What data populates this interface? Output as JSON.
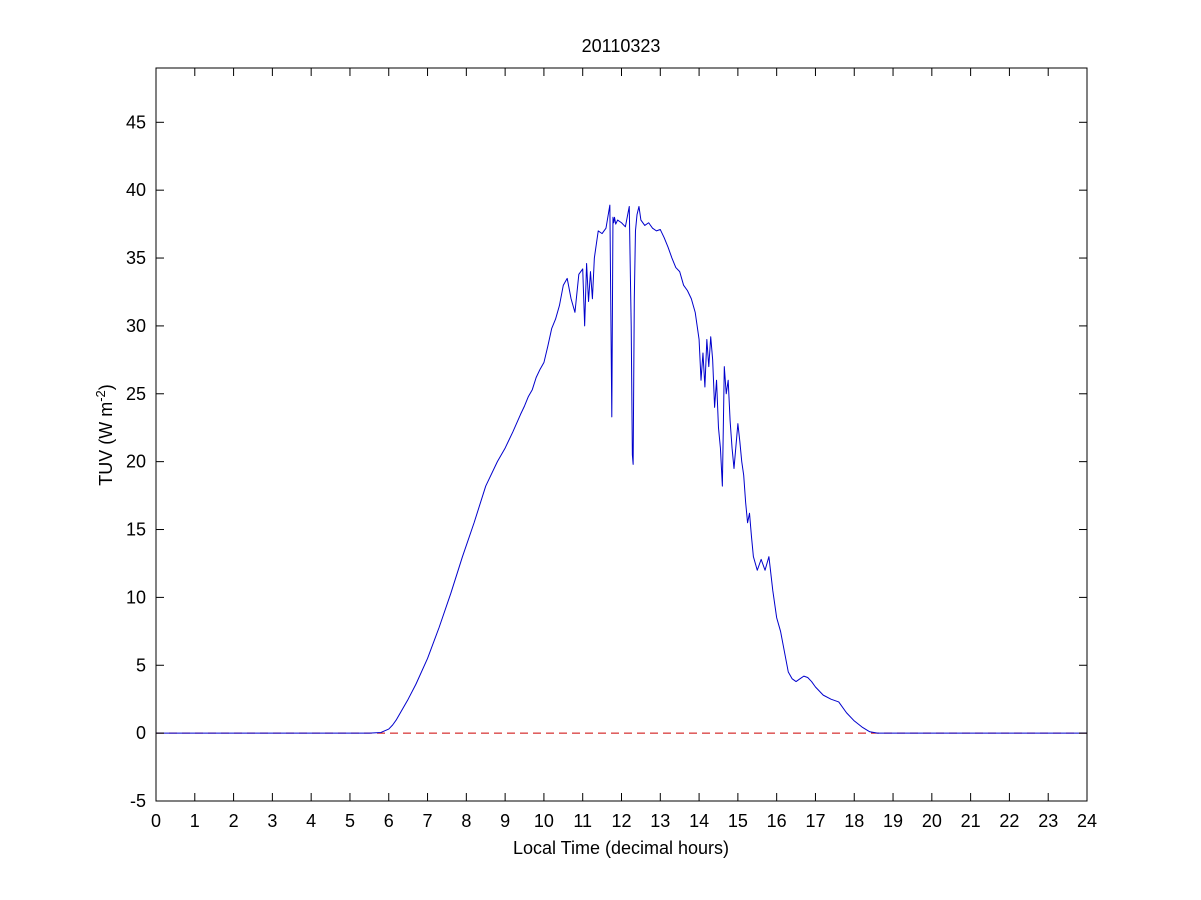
{
  "chart_data": {
    "type": "line",
    "title": "20110323",
    "xlabel": "Local Time (decimal hours)",
    "ylabel": {
      "main": "TUV (W m",
      "superscript": "-2",
      "close": ")"
    },
    "xlim": [
      0,
      24
    ],
    "ylim": [
      -5,
      49
    ],
    "xticks": [
      "0",
      "1",
      "2",
      "3",
      "4",
      "5",
      "6",
      "7",
      "8",
      "9",
      "10",
      "11",
      "12",
      "13",
      "14",
      "15",
      "16",
      "17",
      "18",
      "19",
      "20",
      "21",
      "22",
      "23",
      "24"
    ],
    "yticks": [
      "-5",
      "0",
      "5",
      "10",
      "15",
      "20",
      "25",
      "30",
      "35",
      "40",
      "45"
    ],
    "grid": false,
    "legend": "none",
    "series": [
      {
        "color": "#0000cc",
        "style": "solid",
        "x": [
          0,
          5.5,
          5.8,
          6.0,
          6.1,
          6.2,
          6.3,
          6.5,
          6.7,
          7.0,
          7.3,
          7.6,
          7.9,
          8.2,
          8.5,
          8.8,
          9.0,
          9.2,
          9.4,
          9.5,
          9.6,
          9.7,
          9.8,
          9.9,
          10.0,
          10.1,
          10.2,
          10.3,
          10.4,
          10.5,
          10.6,
          10.7,
          10.8,
          10.9,
          11.0,
          11.05,
          11.1,
          11.15,
          11.2,
          11.25,
          11.3,
          11.35,
          11.4,
          11.5,
          11.6,
          11.7,
          11.75,
          11.78,
          11.8,
          11.82,
          11.85,
          11.9,
          12.0,
          12.1,
          12.2,
          12.25,
          12.28,
          12.3,
          12.33,
          12.36,
          12.4,
          12.45,
          12.5,
          12.6,
          12.7,
          12.8,
          12.9,
          13.0,
          13.1,
          13.2,
          13.3,
          13.4,
          13.5,
          13.6,
          13.7,
          13.8,
          13.9,
          14.0,
          14.05,
          14.1,
          14.15,
          14.2,
          14.25,
          14.3,
          14.35,
          14.4,
          14.45,
          14.5,
          14.55,
          14.6,
          14.65,
          14.7,
          14.75,
          14.8,
          14.85,
          14.9,
          15.0,
          15.05,
          15.1,
          15.15,
          15.2,
          15.25,
          15.3,
          15.35,
          15.4,
          15.5,
          15.6,
          15.7,
          15.8,
          15.9,
          16.0,
          16.1,
          16.2,
          16.3,
          16.4,
          16.5,
          16.6,
          16.7,
          16.8,
          16.9,
          17.0,
          17.2,
          17.4,
          17.6,
          17.8,
          18.0,
          18.2,
          18.4,
          18.6,
          18.8,
          19.0,
          24
        ],
        "y": [
          0,
          0,
          0.05,
          0.3,
          0.6,
          1.0,
          1.5,
          2.5,
          3.6,
          5.5,
          7.8,
          10.3,
          13.0,
          15.5,
          18.2,
          20.0,
          21.0,
          22.2,
          23.5,
          24.1,
          24.8,
          25.3,
          26.2,
          26.8,
          27.3,
          28.5,
          29.8,
          30.5,
          31.5,
          33.0,
          33.5,
          32.0,
          31.0,
          33.8,
          34.2,
          30.0,
          34.6,
          31.8,
          34.0,
          32.0,
          35.0,
          36.0,
          37.0,
          36.8,
          37.2,
          38.9,
          23.3,
          38.0,
          37.6,
          38.0,
          37.5,
          37.8,
          37.6,
          37.3,
          38.8,
          30.0,
          20.5,
          19.8,
          32.0,
          37.0,
          38.2,
          38.8,
          37.8,
          37.4,
          37.6,
          37.2,
          37.0,
          37.1,
          36.5,
          35.8,
          35.0,
          34.3,
          34.0,
          33.0,
          32.6,
          32.0,
          31.0,
          29.0,
          26.0,
          28.0,
          25.5,
          29.0,
          27.0,
          29.2,
          27.5,
          24.0,
          26.0,
          22.5,
          21.0,
          18.2,
          27.0,
          25.0,
          26.0,
          23.0,
          21.0,
          19.5,
          22.8,
          21.5,
          20.0,
          19.0,
          17.0,
          15.5,
          16.2,
          14.5,
          13.0,
          12.0,
          12.8,
          12.0,
          13.0,
          10.5,
          8.5,
          7.5,
          6.0,
          4.5,
          4.0,
          3.8,
          4.0,
          4.2,
          4.1,
          3.8,
          3.4,
          2.8,
          2.5,
          2.3,
          1.5,
          0.9,
          0.45,
          0.1,
          0.0,
          0,
          0,
          0
        ]
      },
      {
        "color": "#cc0000",
        "style": "dashed",
        "x": [
          0,
          24
        ],
        "y": [
          0,
          0
        ]
      }
    ]
  }
}
